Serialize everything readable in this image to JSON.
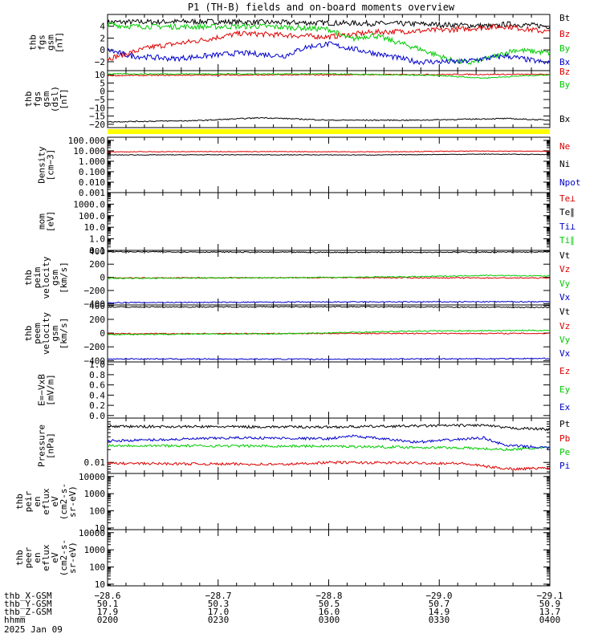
{
  "title": "P1 (TH-B) fields and on-board moments overview",
  "colors": {
    "black": "#000000",
    "red": "#dd0000",
    "green": "#00cc00",
    "blue": "#0000cc",
    "yellow": "#ffff00"
  },
  "chart_data": [
    {
      "type": "line",
      "id": "p1",
      "ylabel": [
        "thb",
        "fgs",
        "gsm",
        "[nT]"
      ],
      "ylim": [
        -3.5,
        6
      ],
      "ticks": [
        4,
        2,
        0,
        -2
      ],
      "tick_labels": [
        "4",
        "2",
        "0",
        "−2"
      ],
      "series": [
        {
          "name": "Bt",
          "color": "black",
          "x": [
            0,
            0.2,
            0.45,
            0.7,
            0.88,
            0.9,
            1
          ],
          "y": [
            4.7,
            4.8,
            4.6,
            4.4,
            4.0,
            4.4,
            4.0
          ]
        },
        {
          "name": "Bz",
          "color": "red",
          "x": [
            0,
            0.1,
            0.2,
            0.3,
            0.4,
            0.5,
            0.6,
            0.7,
            0.8,
            0.85,
            0.9,
            1
          ],
          "y": [
            -1.5,
            0.5,
            1.5,
            2.8,
            2.5,
            2.2,
            3.0,
            3.2,
            3.5,
            3.8,
            4.0,
            3.0
          ]
        },
        {
          "name": "By",
          "color": "green",
          "x": [
            0,
            0.05,
            0.2,
            0.35,
            0.5,
            0.55,
            0.6,
            0.7,
            0.78,
            0.82,
            0.88,
            0.92,
            1
          ],
          "y": [
            4.3,
            4.0,
            3.9,
            4.0,
            3.5,
            1.8,
            2.5,
            0.3,
            -1.8,
            -2.2,
            -1.0,
            0.0,
            -0.5
          ]
        },
        {
          "name": "Bx",
          "color": "blue",
          "x": [
            0,
            0.05,
            0.15,
            0.3,
            0.4,
            0.45,
            0.5,
            0.6,
            0.7,
            0.8,
            0.9,
            1
          ],
          "y": [
            0.0,
            -1.0,
            -1.5,
            -0.5,
            -1.0,
            0.5,
            1.0,
            -0.5,
            -2.0,
            -2.0,
            -1.0,
            -2.3
          ]
        }
      ]
    },
    {
      "type": "line",
      "id": "p2",
      "ylabel": [
        "thb",
        "fgs",
        "gsm",
        "(dsl)",
        "[nT]"
      ],
      "ylim": [
        -22,
        12.5
      ],
      "ticks": [
        10,
        5,
        0,
        -5,
        -10,
        -15,
        -20
      ],
      "tick_labels": [
        "10",
        "5",
        "0",
        "−5",
        "−10",
        "−15",
        "−20"
      ],
      "series": [
        {
          "name": "Bz",
          "color": "red",
          "x": [
            0,
            0.2,
            0.5,
            0.8,
            1
          ],
          "y": [
            9.5,
            9.8,
            10.0,
            10.2,
            10.2
          ]
        },
        {
          "name": "By",
          "color": "green",
          "x": [
            0,
            0.5,
            0.75,
            0.85,
            0.95,
            1
          ],
          "y": [
            10.5,
            10.5,
            9.5,
            8.0,
            9.5,
            10.0
          ]
        },
        {
          "name": "Bx",
          "color": "black",
          "x": [
            0,
            0.2,
            0.35,
            0.5,
            0.7,
            0.9,
            1
          ],
          "y": [
            -18.5,
            -17.8,
            -16.0,
            -17.5,
            -17.5,
            -16.5,
            -17.5
          ]
        }
      ]
    },
    {
      "type": "line",
      "id": "p3",
      "ylabel": [
        "Density",
        "[cm−3]"
      ],
      "log": true,
      "ylim": [
        0.001,
        200
      ],
      "ticks": [
        100,
        10,
        1,
        0.1,
        0.01,
        0.001
      ],
      "tick_labels": [
        "100.000",
        "10.000",
        "1.000",
        "0.100",
        "0.010",
        "0.001"
      ],
      "series": [
        {
          "name": "Ne",
          "color": "red",
          "x": [
            0,
            0.3,
            0.6,
            0.85,
            1
          ],
          "y": [
            8,
            8.5,
            8,
            9.5,
            9
          ]
        },
        {
          "name": "Ni",
          "color": "black",
          "x": [
            0,
            0.3,
            0.6,
            0.85,
            1
          ],
          "y": [
            4,
            4.2,
            4.0,
            4.8,
            4.5
          ]
        },
        {
          "name": "Npot",
          "color": "blue",
          "x": [],
          "y": []
        }
      ]
    },
    {
      "type": "line",
      "id": "p4",
      "ylabel": [
        "mom",
        "[eV]"
      ],
      "log": true,
      "ylim": [
        0.1,
        10000
      ],
      "ticks": [
        1000,
        100,
        10,
        1,
        0.1
      ],
      "tick_labels": [
        "1000.0",
        "100.0",
        "10.0",
        "1.0",
        "0.1"
      ],
      "series": [
        {
          "name": "Te⊥",
          "color": "red",
          "x": [],
          "y": []
        },
        {
          "name": "Te∥",
          "color": "black",
          "x": [],
          "y": []
        },
        {
          "name": "Ti⊥",
          "color": "blue",
          "x": [],
          "y": []
        },
        {
          "name": "Ti∥",
          "color": "green",
          "x": [],
          "y": []
        }
      ]
    },
    {
      "type": "line",
      "id": "p5",
      "ylabel": [
        "thb",
        "peim",
        "velocity",
        "gsm",
        "[km/s]"
      ],
      "ylim": [
        -420,
        410
      ],
      "ticks": [
        400,
        200,
        0,
        -200,
        -400
      ],
      "tick_labels": [
        "400",
        "200",
        "0",
        "−200",
        "−400"
      ],
      "series": [
        {
          "name": "Vt",
          "color": "black",
          "x": [
            0,
            0.5,
            1
          ],
          "y": [
            390,
            380,
            385
          ]
        },
        {
          "name": "Vz",
          "color": "red",
          "x": [
            0,
            0.5,
            1
          ],
          "y": [
            -10,
            -5,
            -10
          ]
        },
        {
          "name": "Vy",
          "color": "green",
          "x": [
            0,
            0.4,
            0.7,
            0.85,
            1
          ],
          "y": [
            -15,
            -5,
            10,
            30,
            20
          ]
        },
        {
          "name": "Vx",
          "color": "blue",
          "x": [
            0,
            0.5,
            1
          ],
          "y": [
            -385,
            -375,
            -370
          ]
        }
      ]
    },
    {
      "type": "line",
      "id": "p6",
      "ylabel": [
        "thb",
        "peem",
        "velocity",
        "gsm",
        "[km/s]"
      ],
      "ylim": [
        -420,
        410
      ],
      "ticks": [
        400,
        200,
        0,
        -200,
        -400
      ],
      "tick_labels": [
        "400",
        "200",
        "0",
        "−200",
        "−400"
      ],
      "series": [
        {
          "name": "Vt",
          "color": "black",
          "x": [
            0,
            0.5,
            1
          ],
          "y": [
            380,
            385,
            375
          ]
        },
        {
          "name": "Vz",
          "color": "red",
          "x": [
            0,
            0.5,
            1
          ],
          "y": [
            -10,
            -5,
            -5
          ]
        },
        {
          "name": "Vy",
          "color": "green",
          "x": [
            0,
            0.4,
            0.7,
            1
          ],
          "y": [
            -20,
            -10,
            30,
            40
          ]
        },
        {
          "name": "Vx",
          "color": "blue",
          "x": [
            0,
            0.5,
            1
          ],
          "y": [
            -375,
            -380,
            -370
          ]
        }
      ]
    },
    {
      "type": "line",
      "id": "p7",
      "ylabel": [
        "E=−VxB",
        "[mV/m]"
      ],
      "ylim": [
        -0.05,
        1.05
      ],
      "ticks": [
        1,
        0.8,
        0.6,
        0.4,
        0.2,
        0
      ],
      "tick_labels": [
        "1.0",
        "0.8",
        "0.6",
        "0.4",
        "0.2",
        "0.0"
      ],
      "series": [
        {
          "name": "Ez",
          "color": "red",
          "x": [],
          "y": []
        },
        {
          "name": "Ey",
          "color": "green",
          "x": [],
          "y": []
        },
        {
          "name": "Ex",
          "color": "blue",
          "x": [],
          "y": []
        }
      ]
    },
    {
      "type": "line",
      "id": "p8",
      "ylabel": [
        "Pressure",
        "[nPa]"
      ],
      "log": true,
      "ylim": [
        0.0055,
        0.11
      ],
      "ticks": [
        0.01
      ],
      "tick_labels": [
        "0.01"
      ],
      "series": [
        {
          "name": "Pt",
          "color": "black",
          "x": [
            0,
            0.5,
            0.85,
            0.9,
            1
          ],
          "y": [
            0.07,
            0.068,
            0.075,
            0.065,
            0.06
          ]
        },
        {
          "name": "Pb",
          "color": "red",
          "x": [
            0,
            0.4,
            0.5,
            0.8,
            0.88,
            0.92,
            1
          ],
          "y": [
            0.0095,
            0.009,
            0.01,
            0.0095,
            0.0075,
            0.007,
            0.0075
          ]
        },
        {
          "name": "Pe",
          "color": "green",
          "x": [
            0,
            0.5,
            0.8,
            0.9,
            1
          ],
          "y": [
            0.025,
            0.024,
            0.022,
            0.02,
            0.022
          ]
        },
        {
          "name": "Pi",
          "color": "blue",
          "x": [
            0,
            0.3,
            0.5,
            0.55,
            0.7,
            0.85,
            0.9,
            1
          ],
          "y": [
            0.032,
            0.038,
            0.036,
            0.042,
            0.03,
            0.038,
            0.025,
            0.022
          ]
        }
      ]
    },
    {
      "type": "line",
      "id": "p9",
      "ylabel": [
        "thb",
        "peir",
        "en",
        "eflux",
        "eV",
        "(cm2-s-",
        "sr-eV)"
      ],
      "log": true,
      "ylim": [
        8,
        15000
      ],
      "ticks": [
        10000,
        1000,
        100,
        10
      ],
      "tick_labels": [
        "10000",
        "1000",
        "100",
        "10"
      ],
      "series": []
    },
    {
      "type": "line",
      "id": "p10",
      "ylabel": [
        "thb",
        "peer",
        "en",
        "eflux",
        "eV",
        "(cm2-s-",
        "sr-eV)"
      ],
      "log": true,
      "ylim": [
        8,
        15000
      ],
      "ticks": [
        10000,
        1000,
        100,
        10
      ],
      "tick_labels": [
        "10000",
        "1000",
        "100",
        "10"
      ],
      "series": []
    }
  ],
  "axis_table": {
    "rows": [
      {
        "label": "thb_X-GSM",
        "values": [
          "−28.6",
          "−28.7",
          "−28.8",
          "−29.0",
          "−29.1"
        ]
      },
      {
        "label": "thb_Y-GSM",
        "values": [
          "50.1",
          "50.3",
          "50.5",
          "50.7",
          "50.9"
        ]
      },
      {
        "label": "thb_Z-GSM",
        "values": [
          "17.9",
          "17.0",
          "16.0",
          "14.9",
          "13.7"
        ]
      },
      {
        "label": "hhmm",
        "values": [
          "0200",
          "0230",
          "0300",
          "0330",
          "0400"
        ]
      }
    ],
    "date": "2025 Jan 09"
  }
}
